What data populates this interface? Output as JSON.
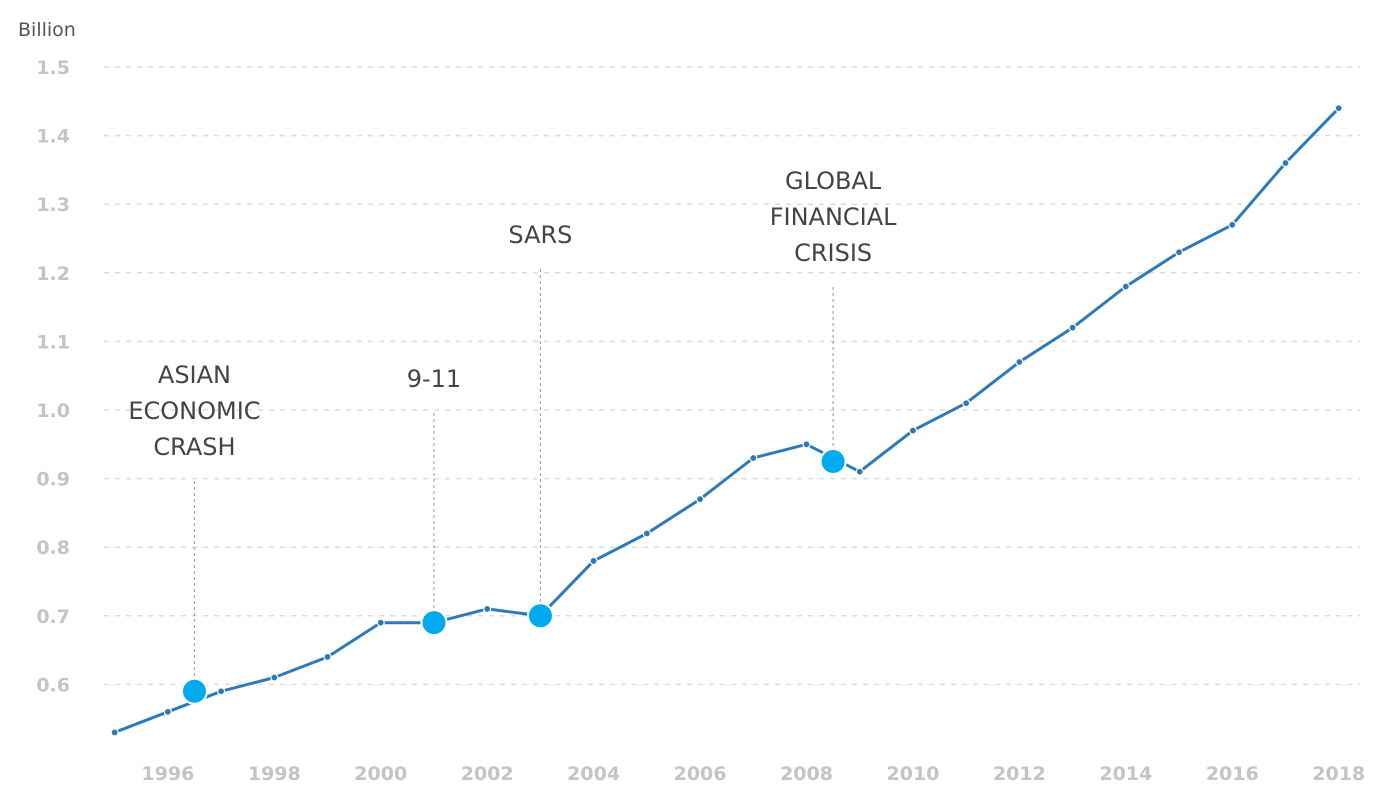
{
  "chart_data": {
    "type": "line",
    "unit_label": "Billion",
    "ylim": [
      0.5,
      1.5
    ],
    "xlim": [
      1994.8,
      2018.4
    ],
    "yticks": [
      "0.6",
      "0.7",
      "0.8",
      "0.9",
      "1.0",
      "1.1",
      "1.2",
      "1.3",
      "1.4",
      "1.5"
    ],
    "xticks": [
      "1996",
      "1998",
      "2000",
      "2002",
      "2004",
      "2006",
      "2008",
      "2010",
      "2012",
      "2014",
      "2016",
      "2018"
    ],
    "grid": true,
    "series": [
      {
        "color": "#2e7ab8",
        "x": [
          1995,
          1996,
          1997,
          1998,
          1999,
          2000,
          2001,
          2002,
          2003,
          2004,
          2005,
          2006,
          2007,
          2008,
          2009,
          2010,
          2011,
          2012,
          2013,
          2014,
          2015,
          2016,
          2017,
          2018
        ],
        "values": [
          0.53,
          0.56,
          0.59,
          0.61,
          0.64,
          0.69,
          0.69,
          0.71,
          0.7,
          0.78,
          0.82,
          0.87,
          0.93,
          0.95,
          0.91,
          0.97,
          1.01,
          1.07,
          1.12,
          1.18,
          1.23,
          1.27,
          1.36,
          1.44
        ]
      }
    ],
    "annotations": [
      {
        "text": [
          "ASIAN",
          "ECONOMIC",
          "CRASH"
        ],
        "x": 1996.5,
        "y": 0.59
      },
      {
        "text": [
          "9-11"
        ],
        "x": 2001.0,
        "y": 0.69
      },
      {
        "text": [
          "SARS"
        ],
        "x": 2003.0,
        "y": 0.7
      },
      {
        "text": [
          "GLOBAL",
          "FINANCIAL",
          "CRISIS"
        ],
        "x": 2008.5,
        "y": 0.925
      }
    ],
    "event_marker_color": "#00aaee"
  }
}
